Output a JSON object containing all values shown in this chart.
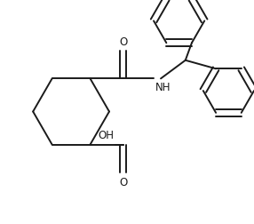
{
  "bg_color": "#ffffff",
  "line_color": "#1a1a1a",
  "line_width": 1.4,
  "font_size": 8.5,
  "figsize": [
    2.86,
    2.53
  ],
  "dpi": 100,
  "xlim": [
    0.0,
    10.0
  ],
  "ylim": [
    0.0,
    8.8
  ]
}
